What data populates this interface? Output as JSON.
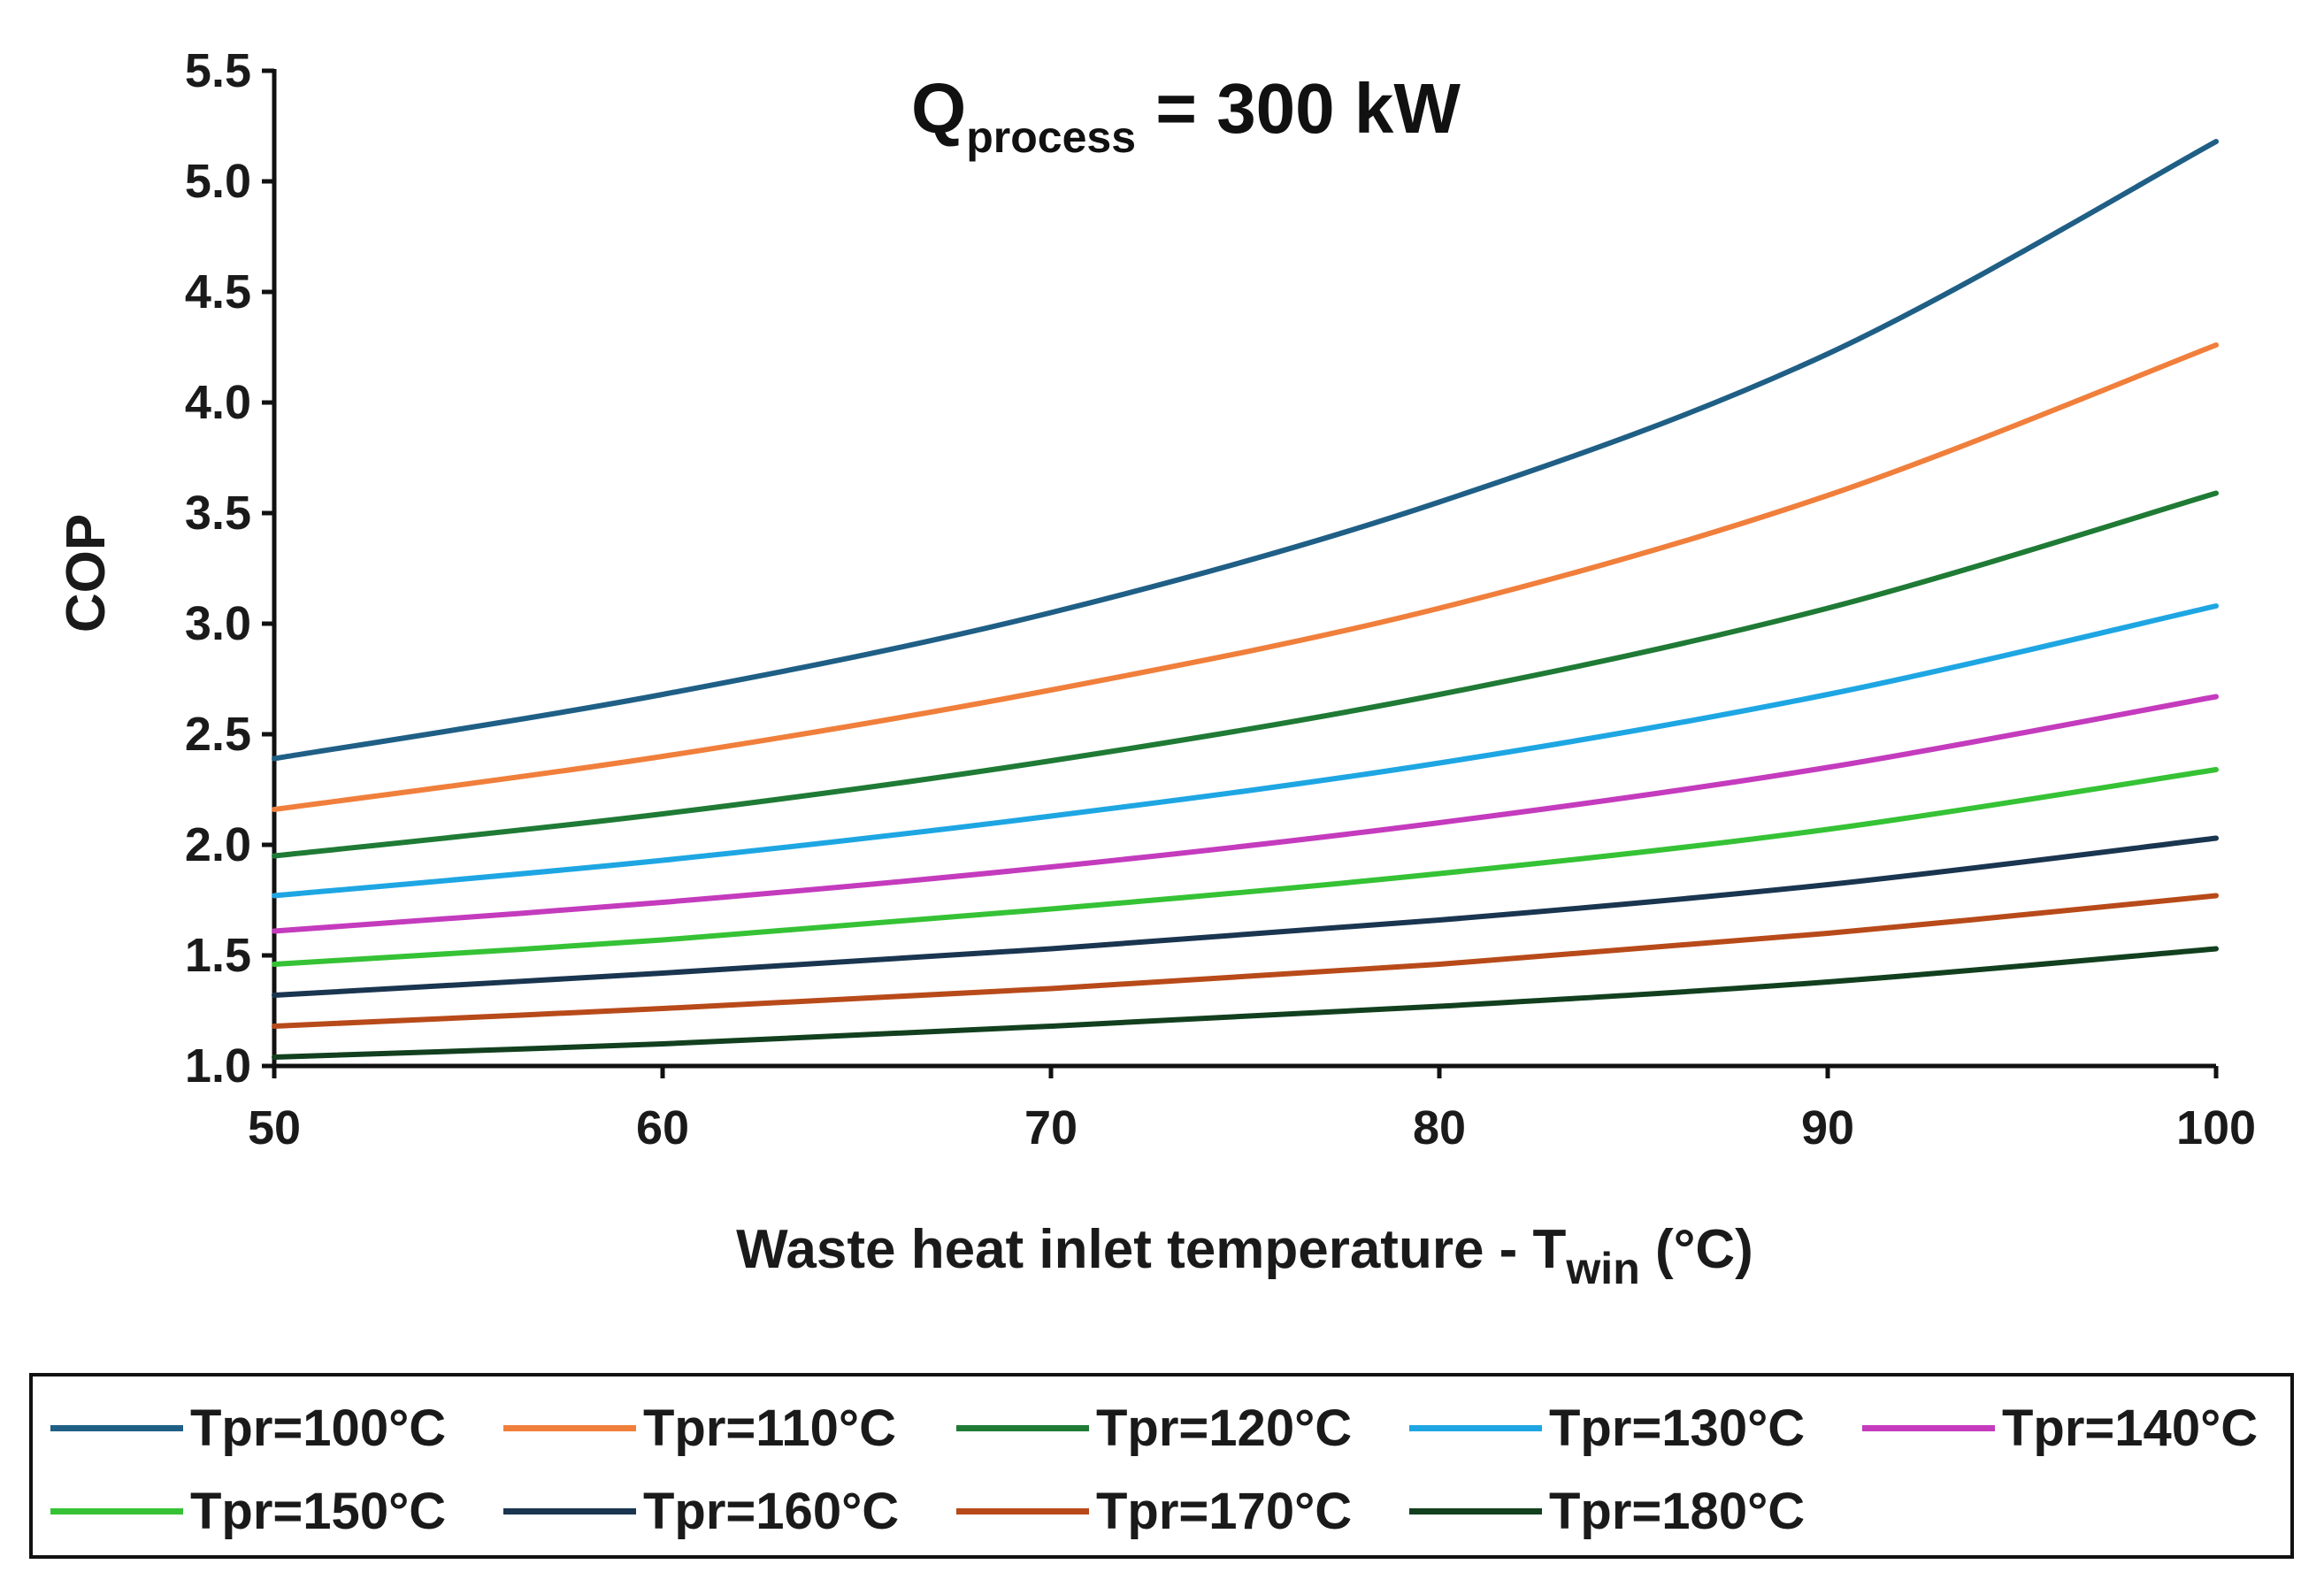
{
  "chart_data": {
    "type": "line",
    "title_main": "Q",
    "title_sub": "process",
    "title_rest": " = 300 kW",
    "xlabel_main": "Waste heat inlet temperature - T",
    "xlabel_sub": "win",
    "xlabel_rest": " (°C)",
    "ylabel": "COP",
    "xlim": [
      50,
      100
    ],
    "ylim": [
      1.0,
      5.5
    ],
    "xticks": [
      50,
      60,
      70,
      80,
      90,
      100
    ],
    "yticks": [
      1.0,
      1.5,
      2.0,
      2.5,
      3.0,
      3.5,
      4.0,
      4.5,
      5.0,
      5.5
    ],
    "xtick_labels": [
      "50",
      "60",
      "70",
      "80",
      "90",
      "100"
    ],
    "ytick_labels": [
      "1.0",
      "1.5",
      "2.0",
      "2.5",
      "3.0",
      "3.5",
      "4.0",
      "4.5",
      "5.0",
      "5.5"
    ],
    "grid": false,
    "legend_position": "bottom",
    "x": [
      50,
      60,
      70,
      80,
      90,
      100
    ],
    "series": [
      {
        "name": "Tpr=100°C",
        "color": "#1f5f86",
        "values": [
          2.39,
          2.68,
          3.05,
          3.55,
          4.22,
          5.18
        ]
      },
      {
        "name": "Tpr=110°C",
        "color": "#f07f3c",
        "values": [
          2.16,
          2.4,
          2.7,
          3.07,
          3.58,
          4.26
        ]
      },
      {
        "name": "Tpr=120°C",
        "color": "#1f7a35",
        "values": [
          1.95,
          2.14,
          2.38,
          2.68,
          3.07,
          3.59
        ]
      },
      {
        "name": "Tpr=130°C",
        "color": "#1ea6e3",
        "values": [
          1.77,
          1.93,
          2.13,
          2.37,
          2.68,
          3.08
        ]
      },
      {
        "name": "Tpr=140°C",
        "color": "#c43bbd",
        "values": [
          1.61,
          1.74,
          1.9,
          2.1,
          2.35,
          2.67
        ]
      },
      {
        "name": "Tpr=150°C",
        "color": "#35c235",
        "values": [
          1.46,
          1.57,
          1.71,
          1.87,
          2.07,
          2.34
        ]
      },
      {
        "name": "Tpr=160°C",
        "color": "#1a3550",
        "values": [
          1.32,
          1.42,
          1.53,
          1.66,
          1.82,
          2.03
        ]
      },
      {
        "name": "Tpr=170°C",
        "color": "#b84a1a",
        "values": [
          1.18,
          1.26,
          1.35,
          1.46,
          1.6,
          1.77
        ]
      },
      {
        "name": "Tpr=180°C",
        "color": "#12401f",
        "values": [
          1.04,
          1.1,
          1.18,
          1.27,
          1.38,
          1.53
        ]
      }
    ]
  }
}
